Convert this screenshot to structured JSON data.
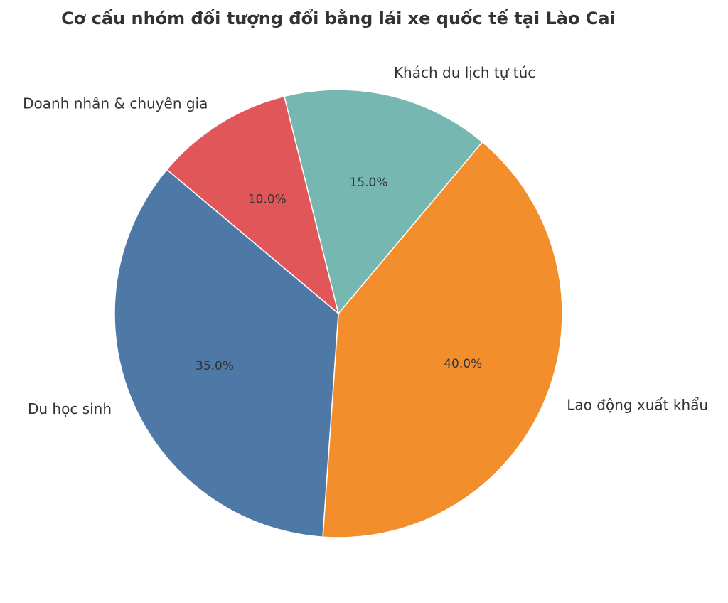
{
  "chart_data": {
    "type": "pie",
    "title": "Cơ cấu nhóm đối tượng đổi bằng lái xe quốc tế tại Lào Cai",
    "categories": [
      "Lao động xuất khẩu",
      "Khách du lịch tự túc",
      "Doanh nhân & chuyên gia",
      "Du học sinh"
    ],
    "values": [
      40,
      15,
      10,
      35
    ],
    "value_labels": [
      "40.0%",
      "15.0%",
      "10.0%",
      "35.0%"
    ],
    "colors": [
      "#f28e2b",
      "#76b7b2",
      "#e15759",
      "#4e79a7"
    ]
  }
}
